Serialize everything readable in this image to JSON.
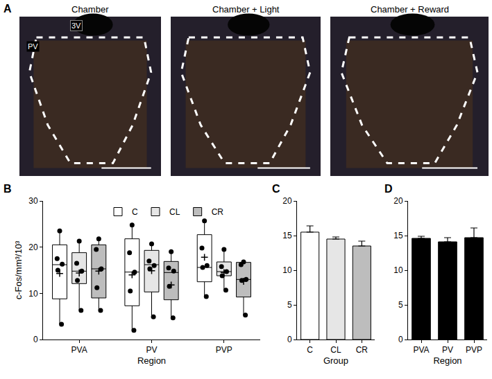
{
  "panel_a": {
    "panel": "A",
    "titles": [
      "Chamber",
      "Chamber + Light",
      "Chamber + Reward"
    ],
    "labels": [
      "3V",
      "PV"
    ]
  },
  "chart_data": [
    {
      "panel": "B",
      "type": "box",
      "x_label": "Region",
      "y_label": "c-Fos/mm³/10³",
      "categories": [
        "PVA",
        "PV",
        "PVP"
      ],
      "series": [
        {
          "name": "C",
          "color": "#ffffff",
          "q1": [
            8.8,
            7.3,
            12.5
          ],
          "median": [
            16.2,
            14.6,
            15.6
          ],
          "q3": [
            20.5,
            21.8,
            22.7
          ],
          "lowerfence": [
            3.3,
            2.0,
            9.3
          ],
          "upperfence": [
            23.5,
            24.8,
            25.7
          ],
          "mean": [
            14.3,
            14.0,
            17.8
          ],
          "points": [
            [
              23.5,
              17.5,
              16.3,
              15.0,
              3.3
            ],
            [
              24.8,
              18.8,
              14.6,
              10.5,
              2.0
            ],
            [
              25.7,
              19.8,
              16.0,
              15.6,
              9.3
            ]
          ]
        },
        {
          "name": "CL",
          "color": "#e6e6e6",
          "q1": [
            12.1,
            10.3,
            13.8
          ],
          "median": [
            14.8,
            16.2,
            14.7
          ],
          "q3": [
            18.8,
            19.3,
            16.8
          ],
          "lowerfence": [
            6.3,
            4.9,
            10.7
          ],
          "upperfence": [
            21.3,
            20.7,
            19.5
          ],
          "mean": [
            14.4,
            14.9,
            14.5
          ],
          "points": [
            [
              21.3,
              16.5,
              14.8,
              12.8,
              6.3
            ],
            [
              20.7,
              17.0,
              16.0,
              15.3,
              4.9
            ],
            [
              19.5,
              15.8,
              14.7,
              13.8,
              10.7
            ]
          ]
        },
        {
          "name": "CR",
          "color": "#bdbdbd",
          "q1": [
            9.0,
            8.6,
            9.2
          ],
          "median": [
            15.3,
            14.5,
            13.0
          ],
          "q3": [
            20.5,
            16.9,
            16.7
          ],
          "lowerfence": [
            6.3,
            4.7,
            5.3
          ],
          "upperfence": [
            21.8,
            19.0,
            17.0
          ],
          "mean": [
            14.8,
            11.8,
            12.6
          ],
          "points": [
            [
              21.8,
              19.5,
              15.3,
              11.2,
              6.3
            ],
            [
              19.0,
              15.5,
              14.8,
              11.5,
              4.7
            ],
            [
              16.8,
              16.2,
              13.0,
              12.8,
              5.3
            ]
          ]
        }
      ],
      "ylim": [
        0,
        30
      ],
      "yticks": [
        0,
        10,
        20,
        30
      ],
      "legend": "top"
    },
    {
      "panel": "C",
      "type": "bar",
      "x_label": "Group",
      "categories": [
        "C",
        "CL",
        "CR"
      ],
      "values": [
        15.5,
        14.5,
        13.5
      ],
      "errors": [
        0.9,
        0.3,
        0.7
      ],
      "colors": [
        "#ffffff",
        "#e6e6e6",
        "#bdbdbd"
      ],
      "ylim": [
        0,
        20
      ],
      "yticks": [
        0,
        5,
        10,
        15,
        20
      ]
    },
    {
      "panel": "D",
      "type": "bar",
      "x_label": "Region",
      "categories": [
        "PVA",
        "PV",
        "PVP"
      ],
      "values": [
        14.6,
        14.1,
        14.7
      ],
      "errors": [
        0.3,
        0.6,
        1.4
      ],
      "colors": [
        "#000000",
        "#000000",
        "#000000"
      ],
      "ylim": [
        0,
        20
      ],
      "yticks": [
        0,
        5,
        10,
        15,
        20
      ]
    }
  ]
}
